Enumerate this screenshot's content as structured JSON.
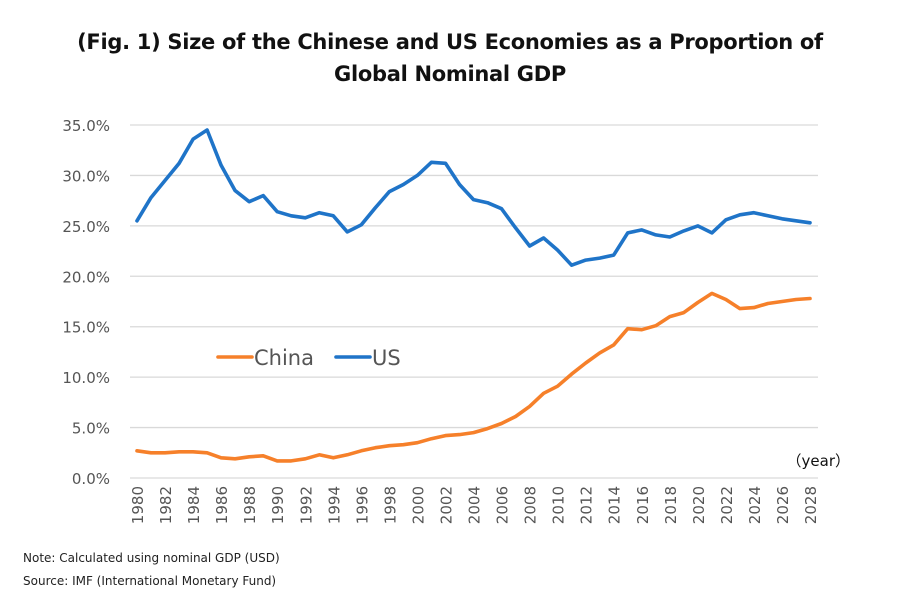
{
  "chart_data": {
    "type": "line",
    "title_line1": "(Fig. 1) Size of the Chinese and US Economies as a Proportion of",
    "title_line2": "Global Nominal GDP",
    "xlabel": "（year）",
    "ylabel": "",
    "ylim": [
      0,
      35
    ],
    "yticks": [
      "0.0%",
      "5.0%",
      "10.0%",
      "15.0%",
      "20.0%",
      "25.0%",
      "30.0%",
      "35.0%"
    ],
    "ytick_values": [
      0,
      5,
      10,
      15,
      20,
      25,
      30,
      35
    ],
    "x": [
      1980,
      1981,
      1982,
      1983,
      1984,
      1985,
      1986,
      1987,
      1988,
      1989,
      1990,
      1991,
      1992,
      1993,
      1994,
      1995,
      1996,
      1997,
      1998,
      1999,
      2000,
      2001,
      2002,
      2003,
      2004,
      2005,
      2006,
      2007,
      2008,
      2009,
      2010,
      2011,
      2012,
      2013,
      2014,
      2015,
      2016,
      2017,
      2018,
      2019,
      2020,
      2021,
      2022,
      2023,
      2024,
      2025,
      2026,
      2027,
      2028
    ],
    "xticks": [
      "1980",
      "1982",
      "1984",
      "1986",
      "1988",
      "1990",
      "1992",
      "1994",
      "1996",
      "1998",
      "2000",
      "2002",
      "2004",
      "2006",
      "2008",
      "2010",
      "2012",
      "2014",
      "2016",
      "2018",
      "2020",
      "2022",
      "2024",
      "2026",
      "2028"
    ],
    "grid": true,
    "legend_position": "center-left",
    "series": [
      {
        "name": "China",
        "color": "#F6802A",
        "values": [
          2.7,
          2.5,
          2.5,
          2.6,
          2.6,
          2.5,
          2.0,
          1.9,
          2.1,
          2.2,
          1.7,
          1.7,
          1.9,
          2.3,
          2.0,
          2.3,
          2.7,
          3.0,
          3.2,
          3.3,
          3.5,
          3.9,
          4.2,
          4.3,
          4.5,
          4.9,
          5.4,
          6.1,
          7.1,
          8.4,
          9.1,
          10.3,
          11.4,
          12.4,
          13.2,
          14.8,
          14.7,
          15.1,
          16.0,
          16.4,
          17.4,
          18.3,
          17.7,
          16.8,
          16.9,
          17.3,
          17.5,
          17.7,
          17.8
        ]
      },
      {
        "name": "US",
        "color": "#1F74C8",
        "values": [
          25.5,
          27.8,
          29.5,
          31.2,
          33.6,
          34.5,
          31.0,
          28.5,
          27.4,
          28.0,
          26.4,
          26.0,
          25.8,
          26.3,
          26.0,
          24.4,
          25.1,
          26.8,
          28.4,
          29.1,
          30.0,
          31.3,
          31.2,
          29.1,
          27.6,
          27.3,
          26.7,
          24.8,
          23.0,
          23.8,
          22.6,
          21.1,
          21.6,
          21.8,
          22.1,
          24.3,
          24.6,
          24.1,
          23.9,
          24.5,
          25.0,
          24.3,
          25.6,
          26.1,
          26.3,
          26.0,
          25.7,
          25.5,
          25.3
        ]
      }
    ]
  },
  "notes": {
    "note": "Note: Calculated using nominal GDP (USD)",
    "source": "Source: IMF (International Monetary Fund)"
  }
}
